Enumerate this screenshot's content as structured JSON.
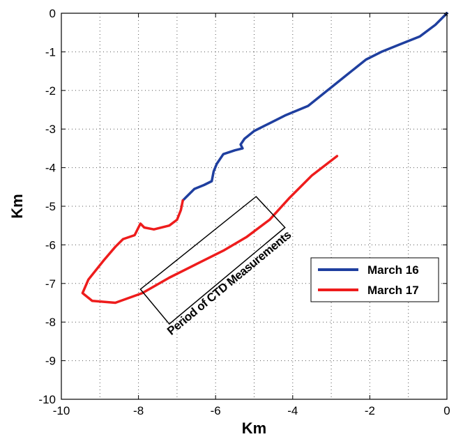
{
  "chart_data": {
    "type": "line",
    "title": "",
    "xlabel": "Km",
    "ylabel": "Km",
    "xlim": [
      -10,
      0
    ],
    "ylim": [
      -10,
      0
    ],
    "xticks": [
      -10,
      -8,
      -6,
      -4,
      -2,
      0
    ],
    "yticks": [
      0,
      -1,
      -2,
      -3,
      -4,
      -5,
      -6,
      -7,
      -8,
      -9,
      -10
    ],
    "grid": true,
    "legend_position": "lower-right",
    "series": [
      {
        "name": "March 16",
        "color": "#1f3f9f",
        "x": [
          0,
          -0.3,
          -0.7,
          -1.2,
          -1.7,
          -2.1,
          -2.6,
          -3.1,
          -3.6,
          -4.2,
          -4.6,
          -5.0,
          -5.25,
          -5.35,
          -5.3,
          -5.5,
          -5.8,
          -5.97,
          -6.05,
          -6.1,
          -6.3,
          -6.55,
          -6.75,
          -6.85
        ],
        "y": [
          0,
          -0.3,
          -0.6,
          -0.8,
          -1.0,
          -1.2,
          -1.6,
          -2.0,
          -2.4,
          -2.65,
          -2.85,
          -3.05,
          -3.25,
          -3.4,
          -3.5,
          -3.55,
          -3.65,
          -3.9,
          -4.1,
          -4.35,
          -4.45,
          -4.55,
          -4.75,
          -4.85
        ]
      },
      {
        "name": "March 17",
        "color": "#ee1c1c",
        "x": [
          -2.85,
          -3.5,
          -4.1,
          -4.6,
          -5.2,
          -5.8,
          -6.5,
          -7.2,
          -7.9,
          -8.6,
          -9.2,
          -9.45,
          -9.3,
          -8.9,
          -8.6,
          -8.4,
          -8.1,
          -8.0,
          -7.95,
          -7.85,
          -7.6,
          -7.2,
          -7.0,
          -6.9,
          -6.85
        ],
        "y": [
          -3.7,
          -4.2,
          -4.8,
          -5.35,
          -5.8,
          -6.15,
          -6.5,
          -6.85,
          -7.25,
          -7.5,
          -7.45,
          -7.25,
          -6.9,
          -6.4,
          -6.05,
          -5.85,
          -5.75,
          -5.55,
          -5.45,
          -5.55,
          -5.6,
          -5.5,
          -5.35,
          -5.1,
          -4.85
        ]
      }
    ],
    "start_marker": {
      "x": 0,
      "y": 0,
      "symbol": "*"
    },
    "annotation": {
      "text": "Period of CTD Measurements",
      "box_corners": [
        [
          -7.2,
          -8.05
        ],
        [
          -4.2,
          -5.55
        ],
        [
          -4.95,
          -4.75
        ],
        [
          -7.95,
          -7.15
        ]
      ]
    }
  }
}
